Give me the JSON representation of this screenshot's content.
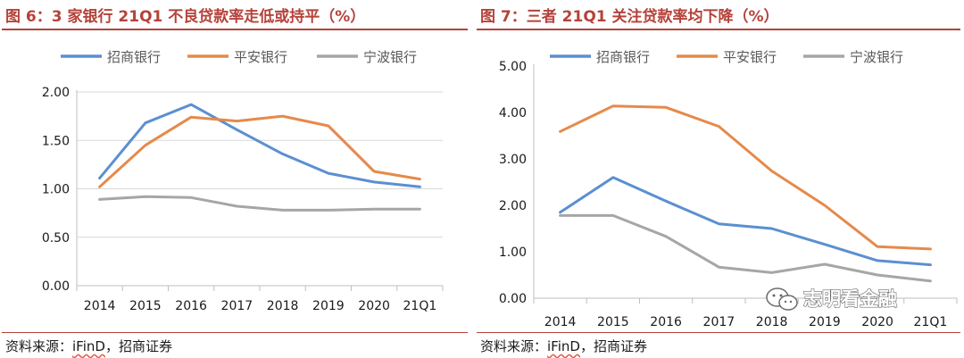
{
  "charts": [
    {
      "figure_title": "图 6：3 家银行 21Q1 不良贷款率走低或持平（%）",
      "source_label": "资料来源：",
      "source_name": "iFinD",
      "source_rest": "，招商证券",
      "chart_data": {
        "type": "line",
        "title": "图 6：3 家银行 21Q1 不良贷款率走低或持平（%）",
        "xlabel": "",
        "ylabel": "",
        "categories": [
          "2014",
          "2015",
          "2016",
          "2017",
          "2018",
          "2019",
          "2020",
          "21Q1"
        ],
        "ylim": [
          0,
          2.0
        ],
        "yticks": [
          "0.00",
          "0.50",
          "1.00",
          "1.50",
          "2.00"
        ],
        "grid": true,
        "legend_position": "top",
        "series": [
          {
            "name": "招商银行",
            "color": "#5b8fd1",
            "values": [
              1.11,
              1.68,
              1.87,
              1.61,
              1.36,
              1.16,
              1.07,
              1.02
            ]
          },
          {
            "name": "平安银行",
            "color": "#e58a4a",
            "values": [
              1.02,
              1.45,
              1.74,
              1.7,
              1.75,
              1.65,
              1.18,
              1.1
            ]
          },
          {
            "name": "宁波银行",
            "color": "#a6a6a6",
            "values": [
              0.89,
              0.92,
              0.91,
              0.82,
              0.78,
              0.78,
              0.79,
              0.79
            ]
          }
        ]
      }
    },
    {
      "figure_title": "图 7：三者 21Q1 关注贷款率均下降（%）",
      "source_label": "资料来源：",
      "source_name": "iFinD",
      "source_rest": "，招商证券",
      "chart_data": {
        "type": "line",
        "title": "图 7：三者 21Q1 关注贷款率均下降（%）",
        "xlabel": "",
        "ylabel": "",
        "categories": [
          "2014",
          "2015",
          "2016",
          "2017",
          "2018",
          "2019",
          "2020",
          "21Q1"
        ],
        "ylim": [
          0,
          5.0
        ],
        "yticks": [
          "0.00",
          "1.00",
          "2.00",
          "3.00",
          "4.00",
          "5.00"
        ],
        "grid": false,
        "legend_position": "top",
        "series": [
          {
            "name": "招商银行",
            "color": "#5b8fd1",
            "values": [
              1.85,
              2.6,
              2.09,
              1.6,
              1.5,
              1.16,
              0.81,
              0.72
            ]
          },
          {
            "name": "平安银行",
            "color": "#e58a4a",
            "values": [
              3.59,
              4.14,
              4.11,
              3.7,
              2.74,
              2.0,
              1.11,
              1.06
            ]
          },
          {
            "name": "宁波银行",
            "color": "#a6a6a6",
            "values": [
              1.78,
              1.78,
              1.33,
              0.67,
              0.55,
              0.73,
              0.5,
              0.37
            ]
          }
        ]
      }
    }
  ],
  "watermark": {
    "text": "志明看金融",
    "icon": "wechat-icon"
  }
}
